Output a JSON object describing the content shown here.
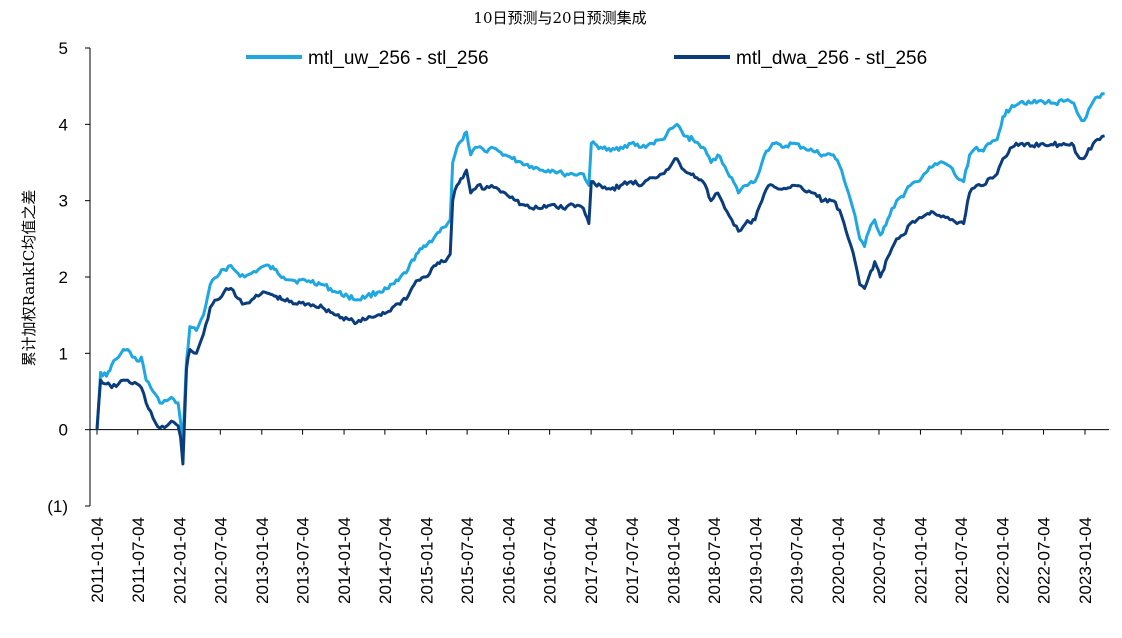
{
  "chart_data": {
    "type": "line",
    "title": "10日预测与20日预测集成",
    "ylabel": "累计加权RankIC均值之差",
    "xlabel": "",
    "ylim": [
      -1,
      5
    ],
    "y_ticks": [
      -1,
      0,
      1,
      2,
      3,
      4,
      5
    ],
    "y_tick_labels": [
      "(1)",
      "0",
      "1",
      "2",
      "3",
      "4",
      "5"
    ],
    "x_tick_labels": [
      "2011-01-04",
      "2011-07-04",
      "2012-01-04",
      "2012-07-04",
      "2013-01-04",
      "2013-07-04",
      "2014-01-04",
      "2014-07-04",
      "2015-01-04",
      "2015-07-04",
      "2016-01-04",
      "2016-07-04",
      "2017-01-04",
      "2017-07-04",
      "2018-01-04",
      "2018-07-04",
      "2019-01-04",
      "2019-07-04",
      "2020-01-04",
      "2020-07-04",
      "2021-01-04",
      "2021-07-04",
      "2022-01-04",
      "2022-07-04",
      "2023-01-04"
    ],
    "grid": false,
    "legend_position": "top",
    "series": [
      {
        "name": "mtl_uw_256 - stl_256",
        "color": "#1EA7E1",
        "points": [
          [
            "2011-01-04",
            0.0
          ],
          [
            "2011-01-20",
            0.75
          ],
          [
            "2011-02-15",
            0.7
          ],
          [
            "2011-03-10",
            0.85
          ],
          [
            "2011-04-10",
            0.95
          ],
          [
            "2011-05-01",
            1.05
          ],
          [
            "2011-05-20",
            1.05
          ],
          [
            "2011-06-10",
            0.95
          ],
          [
            "2011-07-01",
            0.9
          ],
          [
            "2011-07-20",
            0.95
          ],
          [
            "2011-08-10",
            0.65
          ],
          [
            "2011-09-10",
            0.5
          ],
          [
            "2011-10-10",
            0.35
          ],
          [
            "2011-11-10",
            0.38
          ],
          [
            "2011-12-10",
            0.4
          ],
          [
            "2011-12-30",
            0.35
          ],
          [
            "2012-01-10",
            0.1
          ],
          [
            "2012-01-20",
            -0.2
          ],
          [
            "2012-02-05",
            0.9
          ],
          [
            "2012-02-20",
            1.35
          ],
          [
            "2012-03-20",
            1.3
          ],
          [
            "2012-04-20",
            1.5
          ],
          [
            "2012-05-20",
            1.9
          ],
          [
            "2012-06-20",
            2.0
          ],
          [
            "2012-07-20",
            2.1
          ],
          [
            "2012-08-20",
            2.15
          ],
          [
            "2012-09-20",
            2.05
          ],
          [
            "2012-10-20",
            2.0
          ],
          [
            "2012-11-20",
            2.05
          ],
          [
            "2012-12-20",
            2.1
          ],
          [
            "2013-01-20",
            2.15
          ],
          [
            "2013-03-01",
            2.1
          ],
          [
            "2013-04-10",
            2.0
          ],
          [
            "2013-06-01",
            1.95
          ],
          [
            "2013-08-01",
            1.95
          ],
          [
            "2013-10-01",
            1.9
          ],
          [
            "2013-12-01",
            1.8
          ],
          [
            "2014-01-20",
            1.75
          ],
          [
            "2014-03-01",
            1.7
          ],
          [
            "2014-04-15",
            1.75
          ],
          [
            "2014-06-01",
            1.8
          ],
          [
            "2014-07-20",
            1.85
          ],
          [
            "2014-09-01",
            1.95
          ],
          [
            "2014-10-15",
            2.1
          ],
          [
            "2014-11-20",
            2.3
          ],
          [
            "2015-01-01",
            2.4
          ],
          [
            "2015-02-15",
            2.55
          ],
          [
            "2015-03-20",
            2.65
          ],
          [
            "2015-04-20",
            2.75
          ],
          [
            "2015-05-01",
            3.5
          ],
          [
            "2015-05-20",
            3.7
          ],
          [
            "2015-06-15",
            3.8
          ],
          [
            "2015-07-01",
            3.9
          ],
          [
            "2015-07-20",
            3.6
          ],
          [
            "2015-08-20",
            3.7
          ],
          [
            "2015-09-20",
            3.65
          ],
          [
            "2015-10-20",
            3.7
          ],
          [
            "2015-11-20",
            3.65
          ],
          [
            "2015-12-20",
            3.6
          ],
          [
            "2016-01-20",
            3.55
          ],
          [
            "2016-03-01",
            3.5
          ],
          [
            "2016-04-15",
            3.45
          ],
          [
            "2016-06-01",
            3.4
          ],
          [
            "2016-07-15",
            3.4
          ],
          [
            "2016-09-01",
            3.35
          ],
          [
            "2016-10-15",
            3.35
          ],
          [
            "2016-12-01",
            3.35
          ],
          [
            "2016-12-25",
            3.2
          ],
          [
            "2017-01-05",
            3.75
          ],
          [
            "2017-02-15",
            3.7
          ],
          [
            "2017-04-01",
            3.65
          ],
          [
            "2017-05-15",
            3.7
          ],
          [
            "2017-07-01",
            3.75
          ],
          [
            "2017-08-15",
            3.7
          ],
          [
            "2017-10-01",
            3.75
          ],
          [
            "2017-11-15",
            3.8
          ],
          [
            "2018-01-01",
            3.95
          ],
          [
            "2018-01-20",
            4.0
          ],
          [
            "2018-02-20",
            3.85
          ],
          [
            "2018-04-01",
            3.8
          ],
          [
            "2018-05-15",
            3.7
          ],
          [
            "2018-06-20",
            3.5
          ],
          [
            "2018-07-20",
            3.6
          ],
          [
            "2018-08-20",
            3.45
          ],
          [
            "2018-09-20",
            3.3
          ],
          [
            "2018-10-20",
            3.1
          ],
          [
            "2018-11-20",
            3.2
          ],
          [
            "2019-01-01",
            3.25
          ],
          [
            "2019-02-01",
            3.5
          ],
          [
            "2019-02-20",
            3.65
          ],
          [
            "2019-03-20",
            3.75
          ],
          [
            "2019-05-01",
            3.7
          ],
          [
            "2019-06-15",
            3.75
          ],
          [
            "2019-08-01",
            3.7
          ],
          [
            "2019-09-15",
            3.65
          ],
          [
            "2019-11-01",
            3.6
          ],
          [
            "2019-12-15",
            3.6
          ],
          [
            "2020-01-20",
            3.4
          ],
          [
            "2020-02-20",
            3.1
          ],
          [
            "2020-03-20",
            2.8
          ],
          [
            "2020-04-10",
            2.5
          ],
          [
            "2020-05-01",
            2.4
          ],
          [
            "2020-05-20",
            2.6
          ],
          [
            "2020-06-15",
            2.75
          ],
          [
            "2020-07-10",
            2.55
          ],
          [
            "2020-08-20",
            2.8
          ],
          [
            "2020-09-20",
            3.0
          ],
          [
            "2020-10-20",
            3.05
          ],
          [
            "2020-11-20",
            3.2
          ],
          [
            "2020-12-20",
            3.25
          ],
          [
            "2021-01-20",
            3.35
          ],
          [
            "2021-03-01",
            3.45
          ],
          [
            "2021-04-15",
            3.5
          ],
          [
            "2021-05-15",
            3.45
          ],
          [
            "2021-06-15",
            3.3
          ],
          [
            "2021-07-15",
            3.25
          ],
          [
            "2021-08-10",
            3.6
          ],
          [
            "2021-09-10",
            3.7
          ],
          [
            "2021-10-10",
            3.65
          ],
          [
            "2021-11-10",
            3.75
          ],
          [
            "2021-12-10",
            3.8
          ],
          [
            "2022-01-05",
            4.1
          ],
          [
            "2022-02-15",
            4.25
          ],
          [
            "2022-04-01",
            4.3
          ],
          [
            "2022-05-15",
            4.28
          ],
          [
            "2022-07-01",
            4.3
          ],
          [
            "2022-08-15",
            4.28
          ],
          [
            "2022-10-01",
            4.3
          ],
          [
            "2022-11-15",
            4.28
          ],
          [
            "2022-12-01",
            4.15
          ],
          [
            "2022-12-20",
            4.05
          ],
          [
            "2023-01-10",
            4.1
          ],
          [
            "2023-02-10",
            4.3
          ],
          [
            "2023-03-10",
            4.35
          ],
          [
            "2023-04-01",
            4.4
          ]
        ]
      },
      {
        "name": "mtl_dwa_256 - stl_256",
        "color": "#0B3D7C",
        "points": [
          [
            "2011-01-04",
            0.0
          ],
          [
            "2011-01-20",
            0.65
          ],
          [
            "2011-02-15",
            0.6
          ],
          [
            "2011-03-10",
            0.55
          ],
          [
            "2011-04-10",
            0.6
          ],
          [
            "2011-05-01",
            0.65
          ],
          [
            "2011-05-20",
            0.65
          ],
          [
            "2011-06-10",
            0.6
          ],
          [
            "2011-07-01",
            0.6
          ],
          [
            "2011-07-20",
            0.55
          ],
          [
            "2011-08-10",
            0.35
          ],
          [
            "2011-09-10",
            0.15
          ],
          [
            "2011-10-10",
            0.02
          ],
          [
            "2011-11-10",
            0.05
          ],
          [
            "2011-12-10",
            0.1
          ],
          [
            "2011-12-30",
            0.05
          ],
          [
            "2012-01-10",
            -0.1
          ],
          [
            "2012-01-20",
            -0.45
          ],
          [
            "2012-02-05",
            0.8
          ],
          [
            "2012-02-20",
            1.05
          ],
          [
            "2012-03-20",
            1.0
          ],
          [
            "2012-04-20",
            1.25
          ],
          [
            "2012-05-20",
            1.6
          ],
          [
            "2012-06-20",
            1.7
          ],
          [
            "2012-07-20",
            1.8
          ],
          [
            "2012-08-20",
            1.85
          ],
          [
            "2012-09-20",
            1.72
          ],
          [
            "2012-10-20",
            1.65
          ],
          [
            "2012-11-20",
            1.7
          ],
          [
            "2012-12-20",
            1.75
          ],
          [
            "2013-01-20",
            1.8
          ],
          [
            "2013-03-01",
            1.75
          ],
          [
            "2013-04-10",
            1.7
          ],
          [
            "2013-06-01",
            1.65
          ],
          [
            "2013-08-01",
            1.65
          ],
          [
            "2013-10-01",
            1.6
          ],
          [
            "2013-12-01",
            1.5
          ],
          [
            "2014-01-20",
            1.45
          ],
          [
            "2014-03-01",
            1.4
          ],
          [
            "2014-04-15",
            1.45
          ],
          [
            "2014-06-01",
            1.5
          ],
          [
            "2014-07-20",
            1.55
          ],
          [
            "2014-09-01",
            1.65
          ],
          [
            "2014-10-15",
            1.75
          ],
          [
            "2014-11-20",
            1.95
          ],
          [
            "2015-01-01",
            2.0
          ],
          [
            "2015-02-15",
            2.15
          ],
          [
            "2015-03-20",
            2.2
          ],
          [
            "2015-04-20",
            2.3
          ],
          [
            "2015-05-01",
            3.0
          ],
          [
            "2015-05-20",
            3.2
          ],
          [
            "2015-06-15",
            3.3
          ],
          [
            "2015-07-01",
            3.4
          ],
          [
            "2015-07-20",
            3.1
          ],
          [
            "2015-08-20",
            3.2
          ],
          [
            "2015-09-20",
            3.15
          ],
          [
            "2015-10-20",
            3.2
          ],
          [
            "2015-11-20",
            3.15
          ],
          [
            "2015-12-20",
            3.1
          ],
          [
            "2016-01-20",
            3.05
          ],
          [
            "2016-03-01",
            2.95
          ],
          [
            "2016-04-15",
            2.9
          ],
          [
            "2016-06-01",
            2.9
          ],
          [
            "2016-07-15",
            2.95
          ],
          [
            "2016-09-01",
            2.9
          ],
          [
            "2016-10-15",
            2.95
          ],
          [
            "2016-12-01",
            2.9
          ],
          [
            "2016-12-25",
            2.7
          ],
          [
            "2017-01-05",
            3.25
          ],
          [
            "2017-02-15",
            3.2
          ],
          [
            "2017-04-01",
            3.15
          ],
          [
            "2017-05-15",
            3.2
          ],
          [
            "2017-07-01",
            3.25
          ],
          [
            "2017-08-15",
            3.2
          ],
          [
            "2017-10-01",
            3.3
          ],
          [
            "2017-11-15",
            3.35
          ],
          [
            "2018-01-01",
            3.5
          ],
          [
            "2018-01-20",
            3.55
          ],
          [
            "2018-02-20",
            3.4
          ],
          [
            "2018-04-01",
            3.35
          ],
          [
            "2018-05-15",
            3.25
          ],
          [
            "2018-06-20",
            3.0
          ],
          [
            "2018-07-20",
            3.1
          ],
          [
            "2018-08-20",
            2.9
          ],
          [
            "2018-09-20",
            2.75
          ],
          [
            "2018-10-20",
            2.6
          ],
          [
            "2018-11-20",
            2.7
          ],
          [
            "2019-01-01",
            2.75
          ],
          [
            "2019-02-01",
            3.0
          ],
          [
            "2019-02-20",
            3.15
          ],
          [
            "2019-03-20",
            3.2
          ],
          [
            "2019-05-01",
            3.15
          ],
          [
            "2019-06-15",
            3.2
          ],
          [
            "2019-08-01",
            3.15
          ],
          [
            "2019-09-15",
            3.1
          ],
          [
            "2019-11-01",
            3.0
          ],
          [
            "2019-12-15",
            3.0
          ],
          [
            "2020-01-20",
            2.8
          ],
          [
            "2020-02-20",
            2.5
          ],
          [
            "2020-03-20",
            2.2
          ],
          [
            "2020-04-10",
            1.9
          ],
          [
            "2020-05-01",
            1.85
          ],
          [
            "2020-05-20",
            2.0
          ],
          [
            "2020-06-15",
            2.2
          ],
          [
            "2020-07-10",
            2.0
          ],
          [
            "2020-08-20",
            2.3
          ],
          [
            "2020-09-20",
            2.5
          ],
          [
            "2020-10-20",
            2.55
          ],
          [
            "2020-11-20",
            2.7
          ],
          [
            "2020-12-20",
            2.75
          ],
          [
            "2021-01-20",
            2.8
          ],
          [
            "2021-03-01",
            2.85
          ],
          [
            "2021-04-15",
            2.8
          ],
          [
            "2021-05-15",
            2.75
          ],
          [
            "2021-06-15",
            2.7
          ],
          [
            "2021-07-15",
            2.7
          ],
          [
            "2021-08-10",
            3.1
          ],
          [
            "2021-09-10",
            3.2
          ],
          [
            "2021-10-10",
            3.2
          ],
          [
            "2021-11-10",
            3.3
          ],
          [
            "2021-12-10",
            3.35
          ],
          [
            "2022-01-05",
            3.55
          ],
          [
            "2022-02-15",
            3.7
          ],
          [
            "2022-04-01",
            3.75
          ],
          [
            "2022-05-15",
            3.72
          ],
          [
            "2022-07-01",
            3.75
          ],
          [
            "2022-08-15",
            3.73
          ],
          [
            "2022-10-01",
            3.75
          ],
          [
            "2022-11-15",
            3.72
          ],
          [
            "2022-12-01",
            3.6
          ],
          [
            "2022-12-20",
            3.55
          ],
          [
            "2023-01-10",
            3.6
          ],
          [
            "2023-02-10",
            3.75
          ],
          [
            "2023-03-10",
            3.8
          ],
          [
            "2023-04-01",
            3.85
          ]
        ]
      }
    ]
  }
}
